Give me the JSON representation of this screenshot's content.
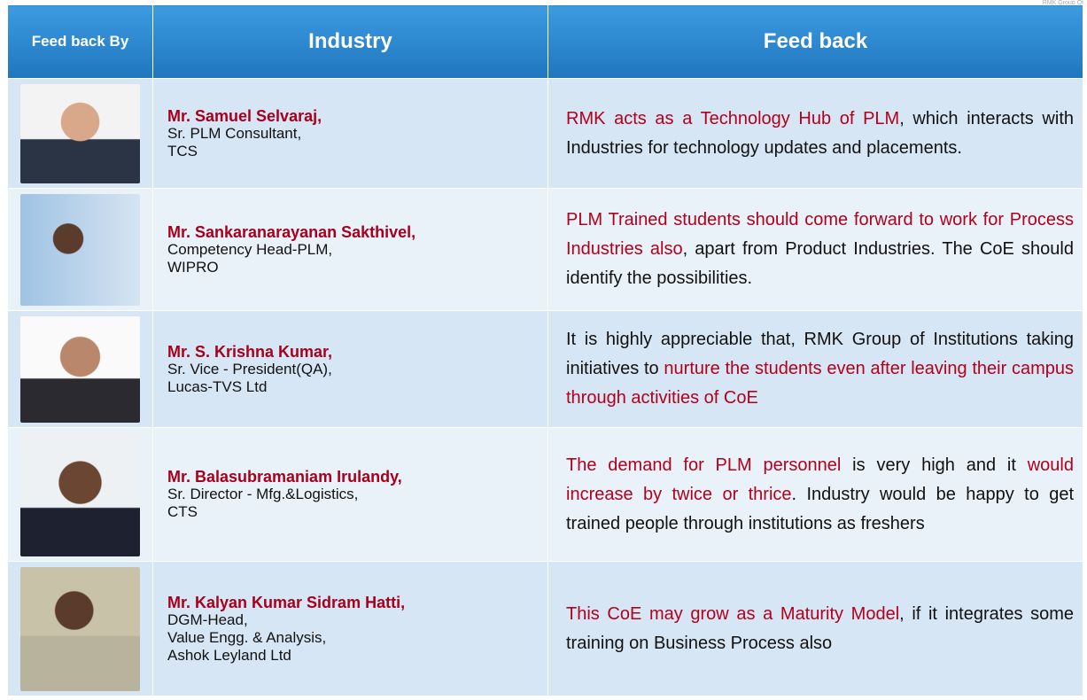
{
  "corner_text": "RMK Group Of",
  "header": {
    "by": "Feed back By",
    "industry": "Industry",
    "feedback": "Feed back"
  },
  "rows": [
    {
      "name": "Mr. Samuel Selvaraj,",
      "lines": [
        "Sr. PLM Consultant,",
        "TCS"
      ],
      "feedback": [
        {
          "text": "RMK acts as a Technology Hub of PLM",
          "color": "#b3001b"
        },
        {
          "text": ", which interacts with Industries for technology updates and placements.",
          "color": "#111111"
        }
      ]
    },
    {
      "name": "Mr. Sankaranarayanan Sakthivel,",
      "lines": [
        "Competency Head-PLM,",
        "WIPRO"
      ],
      "feedback": [
        {
          "text": "PLM Trained students should come forward to work for Process Industries also",
          "color": "#b3001b"
        },
        {
          "text": ", apart from Product Industries. The CoE should identify the possibilities.",
          "color": "#111111"
        }
      ]
    },
    {
      "name": "Mr. S. Krishna Kumar,",
      "lines": [
        "Sr. Vice - President(QA),",
        "Lucas-TVS Ltd"
      ],
      "feedback": [
        {
          "text": "It is highly appreciable that, RMK Group of Institutions taking initiatives to ",
          "color": "#111111"
        },
        {
          "text": "nurture the students even after leaving their campus through activities of CoE",
          "color": "#b3001b"
        }
      ]
    },
    {
      "name": "Mr. Balasubramaniam Irulandy,",
      "lines": [
        "Sr. Director - Mfg.&Logistics,",
        "CTS"
      ],
      "feedback": [
        {
          "text": "The demand for PLM personnel",
          "color": "#b3001b"
        },
        {
          "text": " is very high and it ",
          "color": "#111111"
        },
        {
          "text": "would increase by twice or thrice",
          "color": "#b3001b"
        },
        {
          "text": ". Industry would be happy to get trained people through institutions as freshers",
          "color": "#111111"
        }
      ]
    },
    {
      "name": "Mr. Kalyan Kumar Sidram Hatti,",
      "lines": [
        "DGM-Head,",
        "Value Engg. & Analysis,",
        "Ashok Leyland Ltd"
      ],
      "feedback": [
        {
          "text": "This CoE may grow as a Maturity Model",
          "color": "#b3001b"
        },
        {
          "text": ", if it integrates some training on Business Process also",
          "color": "#111111"
        }
      ]
    }
  ]
}
